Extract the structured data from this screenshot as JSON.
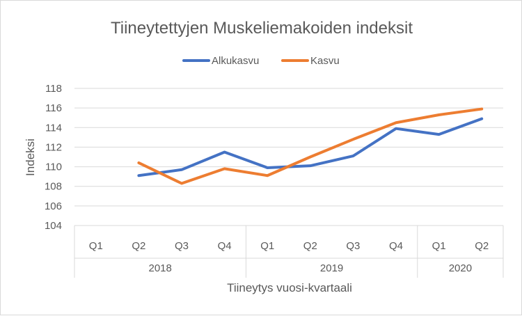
{
  "chart_data": {
    "type": "line",
    "title": "Tiineytettyjen Muskeliemakoiden indeksit",
    "xlabel": "Tiineytys vuosi-kvartaali",
    "ylabel": "Indeksi",
    "ylim": [
      104,
      118
    ],
    "yticks": [
      104,
      106,
      108,
      110,
      112,
      114,
      116,
      118
    ],
    "grid": true,
    "legend": "top",
    "categories": [
      "Q1",
      "Q2",
      "Q3",
      "Q4",
      "Q1",
      "Q2",
      "Q3",
      "Q4",
      "Q1",
      "Q2"
    ],
    "groups": [
      {
        "label": "2018",
        "count": 4
      },
      {
        "label": "2019",
        "count": 4
      },
      {
        "label": "2020",
        "count": 2
      }
    ],
    "series": [
      {
        "name": "Alkukasvu",
        "color": "#4472c4",
        "values": [
          null,
          109.1,
          109.7,
          111.5,
          109.9,
          110.1,
          111.1,
          113.9,
          113.3,
          114.9
        ]
      },
      {
        "name": "Kasvu",
        "color": "#ed7d31",
        "values": [
          null,
          110.4,
          108.3,
          109.8,
          109.1,
          111.0,
          112.8,
          114.5,
          115.3,
          115.9
        ]
      }
    ]
  }
}
